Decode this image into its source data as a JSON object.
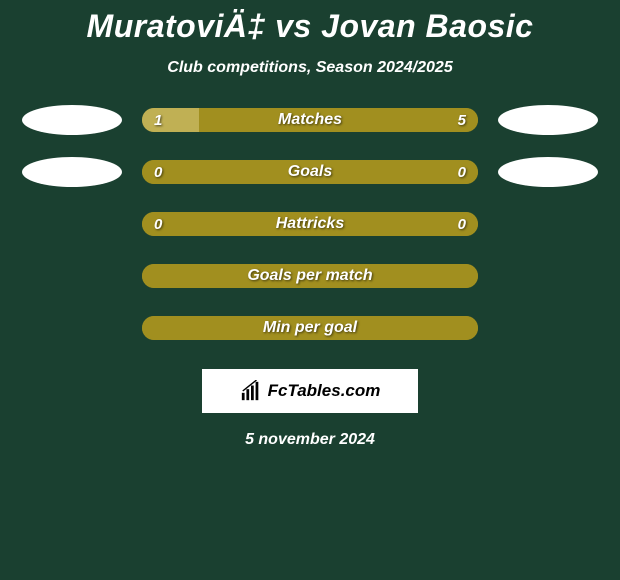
{
  "title": "MuratoviÄ‡ vs Jovan Baosic",
  "subtitle": "Club competitions, Season 2024/2025",
  "footer_date": "5 november 2024",
  "logo_text": "FcTables.com",
  "colors": {
    "background": "#1a4030",
    "bar_base": "#a18f1f",
    "bar_left_fill": "#c0b054",
    "bar_right_fill": "#a18f1f",
    "avatar": "#ffffff",
    "text": "#ffffff",
    "logo_bg": "#ffffff",
    "logo_text": "#000000"
  },
  "rows": [
    {
      "label": "Matches",
      "left_value": "1",
      "right_value": "5",
      "left_pct": 17,
      "right_pct": 83,
      "show_avatars": true,
      "show_values": true
    },
    {
      "label": "Goals",
      "left_value": "0",
      "right_value": "0",
      "left_pct": 0,
      "right_pct": 100,
      "show_avatars": true,
      "show_values": true
    },
    {
      "label": "Hattricks",
      "left_value": "0",
      "right_value": "0",
      "left_pct": 0,
      "right_pct": 100,
      "show_avatars": false,
      "show_values": true
    },
    {
      "label": "Goals per match",
      "left_value": "",
      "right_value": "",
      "left_pct": 0,
      "right_pct": 100,
      "show_avatars": false,
      "show_values": false
    },
    {
      "label": "Min per goal",
      "left_value": "",
      "right_value": "",
      "left_pct": 0,
      "right_pct": 100,
      "show_avatars": false,
      "show_values": false
    }
  ]
}
